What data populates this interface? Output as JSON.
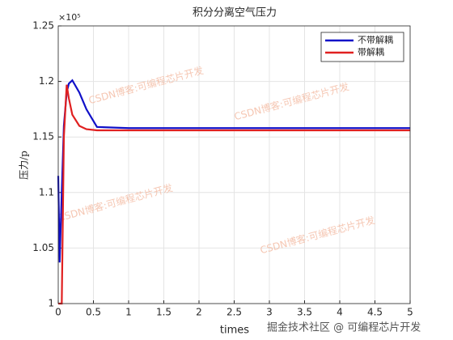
{
  "chart_data": {
    "type": "line",
    "title": "积分分离空气压力",
    "x_label": "times",
    "y_label": "压力/p",
    "y_multiplier": "×10⁵",
    "x": [
      0,
      0.02,
      0.05,
      0.08,
      0.12,
      0.15,
      0.2,
      0.3,
      0.4,
      0.55,
      1,
      2,
      3,
      4,
      5
    ],
    "series": [
      {
        "name": "不带解耦",
        "color": "#1010c8",
        "values": [
          1.115,
          1.037,
          1.1,
          1.16,
          1.19,
          1.198,
          1.201,
          1.19,
          1.175,
          1.159,
          1.158,
          1.158,
          1.158,
          1.158,
          1.158
        ]
      },
      {
        "name": "带解耦",
        "color": "#e02020",
        "values": [
          1.0,
          1.0,
          1.0,
          1.15,
          1.197,
          1.185,
          1.17,
          1.16,
          1.157,
          1.156,
          1.156,
          1.156,
          1.156,
          1.156,
          1.156
        ]
      }
    ],
    "xlim": [
      0,
      5
    ],
    "xticks": [
      0,
      0.5,
      1,
      1.5,
      2,
      2.5,
      3,
      3.5,
      4,
      4.5,
      5
    ],
    "ylim": [
      1,
      1.25
    ],
    "yticks": [
      1,
      1.05,
      1.1,
      1.15,
      1.2,
      1.25
    ],
    "grid": true,
    "legend": "upper-right",
    "watermarks": [
      "CSDN博客:可编程芯片开发",
      "CSDN博客:可编程芯片开发",
      "CSDN博客:可编程芯片开发",
      "CSDN博客:可编程芯片开发"
    ],
    "footer_watermark": "掘金技术社区 @ 可编程芯片开发"
  }
}
